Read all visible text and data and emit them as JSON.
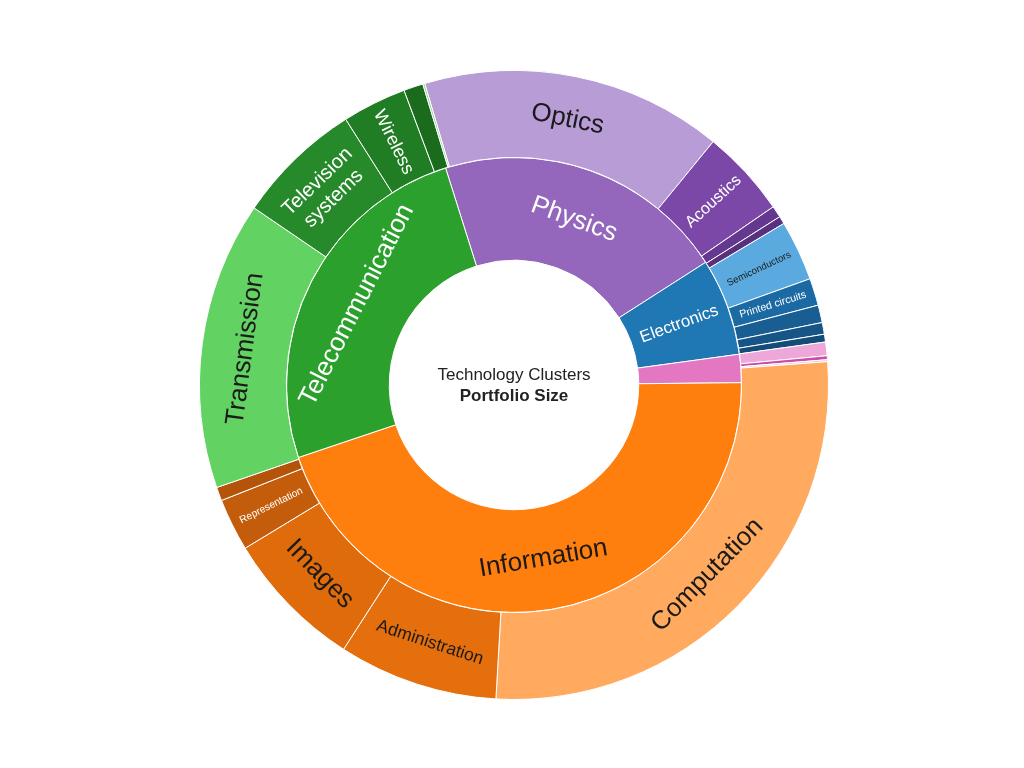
{
  "chart_data": [
    {
      "type": "donut",
      "title": "Technology Clusters",
      "subtitle": "Portfolio Size",
      "categories": [
        "Physics",
        "Electronics",
        null,
        "Information",
        "Telecommunication"
      ],
      "values": [
        20.8,
        6.9,
        2.0,
        45.0,
        25.3
      ],
      "colors": [
        "#9467bd",
        "#1f77b4",
        "#e377c2",
        "#ff7f0e",
        "#2ca02c"
      ]
    },
    {
      "type": "donut",
      "categories": [
        "Optics",
        "Acoustics",
        null,
        null,
        "Semiconductors",
        "Printed circuits",
        null,
        null,
        null,
        null,
        null,
        null,
        "Computation",
        "Administration",
        "Images",
        "Representation",
        null,
        "Transmission",
        "Television systems",
        "Wireless",
        null,
        null
      ],
      "values": [
        15.5,
        4.5,
        0.6,
        0.4,
        3.1,
        1.4,
        0.9,
        0.6,
        0.4,
        0.7,
        0.2,
        0.1,
        27.1,
        8.2,
        7.2,
        2.7,
        0.7,
        14.8,
        6.5,
        3.3,
        1.0,
        0.1
      ],
      "colors": [
        "#b89cd6",
        "#7b48a8",
        "#65388f",
        "#58307e",
        "#5aaae0",
        "#1c6aa3",
        "#185e92",
        "#165586",
        "#134c78",
        "#eda8d9",
        "#c94ea8",
        "#f0c0e2",
        "#ffaa5f",
        "#e56f0c",
        "#e06b0a",
        "#c45d0b",
        "#b4540a",
        "#62d262",
        "#26892a",
        "#217d24",
        "#1b6b1d",
        "#98d498"
      ]
    }
  ]
}
